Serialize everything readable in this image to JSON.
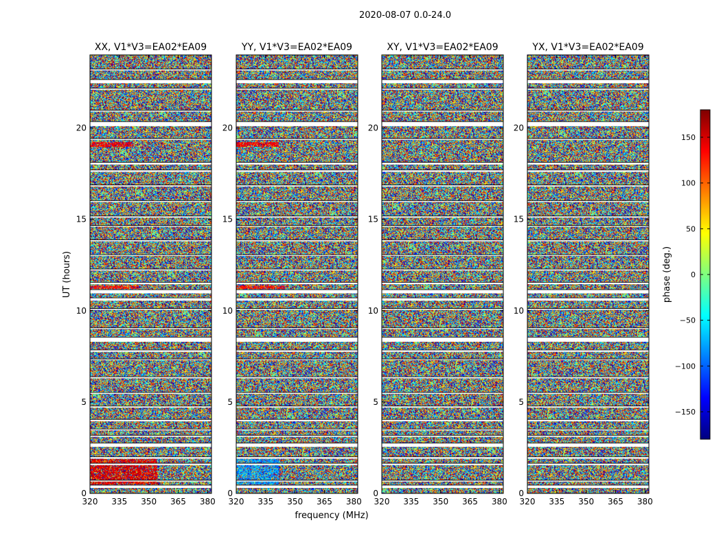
{
  "chart_data": {
    "type": "heatmap",
    "suptitle": "2020-08-07 0.0-24.0",
    "xlabel": "frequency (MHz)",
    "ylabel": "UT (hours)",
    "xlim": [
      320,
      382
    ],
    "ylim": [
      0,
      24
    ],
    "xticks": [
      320,
      335,
      350,
      365,
      380
    ],
    "yticks": [
      0,
      5,
      10,
      15,
      20
    ],
    "colorbar": {
      "label": "phase (deg.)",
      "range": [
        -180,
        180
      ],
      "ticks": [
        150,
        100,
        50,
        0,
        -50,
        -100,
        -150
      ],
      "tick_labels": [
        "150",
        "100",
        "50",
        "0",
        "−50",
        "−100",
        "−150"
      ],
      "colormap": "jet"
    },
    "panels": [
      {
        "title": "XX, V1*V3=EA02*EA09",
        "show_yticks": true
      },
      {
        "title": "YY, V1*V3=EA02*EA09",
        "show_yticks": true
      },
      {
        "title": "XY, V1*V3=EA02*EA09",
        "show_yticks": true
      },
      {
        "title": "YX, V1*V3=EA02*EA09",
        "show_yticks": true
      }
    ],
    "flagged_gaps_hours": [
      [
        0.3,
        0.45
      ],
      [
        0.65,
        0.72
      ],
      [
        1.55,
        1.65
      ],
      [
        1.9,
        2.0
      ],
      [
        2.55,
        2.75
      ],
      [
        3.1,
        3.18
      ],
      [
        3.45,
        3.52
      ],
      [
        3.95,
        4.05
      ],
      [
        4.7,
        4.78
      ],
      [
        5.45,
        5.52
      ],
      [
        6.3,
        6.38
      ],
      [
        7.3,
        7.36
      ],
      [
        7.75,
        7.85
      ],
      [
        8.3,
        8.55
      ],
      [
        9.0,
        9.06
      ],
      [
        10.05,
        10.12
      ],
      [
        10.55,
        10.7
      ],
      [
        10.95,
        11.15
      ],
      [
        11.45,
        11.55
      ],
      [
        12.2,
        12.28
      ],
      [
        13.0,
        13.06
      ],
      [
        13.8,
        13.88
      ],
      [
        14.6,
        14.66
      ],
      [
        15.1,
        15.18
      ],
      [
        15.95,
        16.02
      ],
      [
        16.8,
        16.88
      ],
      [
        17.6,
        17.7
      ],
      [
        18.0,
        18.12
      ],
      [
        19.35,
        19.42
      ],
      [
        20.1,
        20.35
      ],
      [
        20.9,
        20.97
      ],
      [
        22.1,
        22.18
      ],
      [
        22.45,
        22.65
      ],
      [
        23.15,
        23.22
      ]
    ],
    "notes": "Phase (deg.) vs frequency and UT; strong coherent phase structure in XX and YY near 0.5-2 h and 19 h; cross-hands (XY, YX) mostly noise."
  }
}
